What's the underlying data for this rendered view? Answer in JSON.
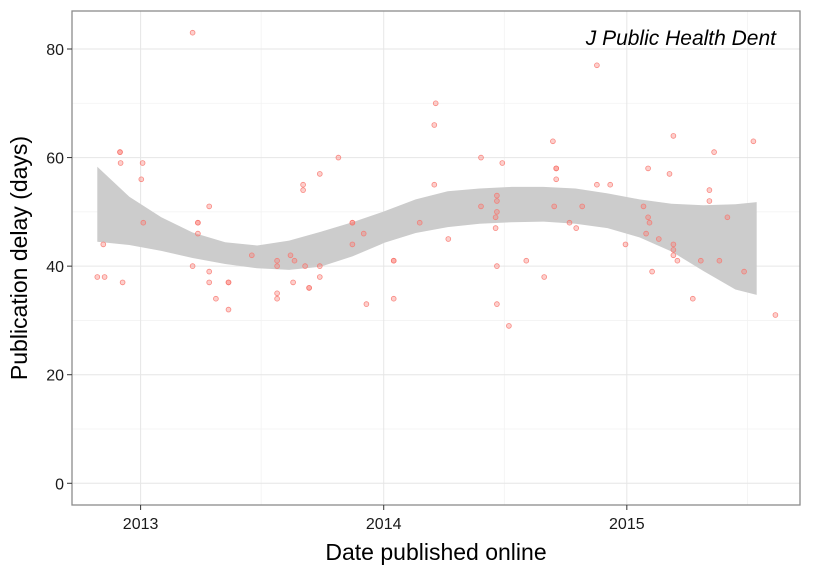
{
  "chart_data": {
    "type": "scatter",
    "annotation": "J Public Health Dent",
    "xlabel": "Date published online",
    "ylabel": "Publication delay (days)",
    "xlim": [
      "2012-09-20",
      "2015-09-18"
    ],
    "ylim": [
      -4,
      87
    ],
    "x_ticks": [
      {
        "date": "2013-01-01",
        "label": "2013"
      },
      {
        "date": "2014-01-01",
        "label": "2014"
      },
      {
        "date": "2015-01-01",
        "label": "2015"
      }
    ],
    "x_minor_ticks": [
      "2013-07-01",
      "2014-07-01",
      "2015-07-01"
    ],
    "y_ticks": [
      0,
      20,
      40,
      60,
      80
    ],
    "y_minor_ticks": [
      10,
      30,
      50,
      70
    ],
    "grid": true,
    "point_color": "#f8766d",
    "band_color": "#cccccc",
    "points": [
      {
        "x": "2012-10-28",
        "y": 38
      },
      {
        "x": "2012-11-06",
        "y": 44
      },
      {
        "x": "2012-11-08",
        "y": 38
      },
      {
        "x": "2012-12-01",
        "y": 61
      },
      {
        "x": "2012-12-01",
        "y": 61
      },
      {
        "x": "2012-12-02",
        "y": 59
      },
      {
        "x": "2012-12-05",
        "y": 37
      },
      {
        "x": "2013-01-04",
        "y": 59
      },
      {
        "x": "2013-01-02",
        "y": 56
      },
      {
        "x": "2013-01-05",
        "y": 48
      },
      {
        "x": "2013-03-20",
        "y": 83
      },
      {
        "x": "2013-03-20",
        "y": 40
      },
      {
        "x": "2013-03-28",
        "y": 48
      },
      {
        "x": "2013-03-28",
        "y": 48
      },
      {
        "x": "2013-03-28",
        "y": 46
      },
      {
        "x": "2013-04-14",
        "y": 51
      },
      {
        "x": "2013-04-14",
        "y": 39
      },
      {
        "x": "2013-04-14",
        "y": 37
      },
      {
        "x": "2013-04-24",
        "y": 34
      },
      {
        "x": "2013-05-13",
        "y": 37
      },
      {
        "x": "2013-05-13",
        "y": 37
      },
      {
        "x": "2013-05-13",
        "y": 32
      },
      {
        "x": "2013-06-17",
        "y": 42
      },
      {
        "x": "2013-07-25",
        "y": 41
      },
      {
        "x": "2013-07-25",
        "y": 40
      },
      {
        "x": "2013-07-25",
        "y": 35
      },
      {
        "x": "2013-07-25",
        "y": 34
      },
      {
        "x": "2013-08-14",
        "y": 42
      },
      {
        "x": "2013-08-18",
        "y": 37
      },
      {
        "x": "2013-08-20",
        "y": 41
      },
      {
        "x": "2013-09-02",
        "y": 55
      },
      {
        "x": "2013-09-02",
        "y": 54
      },
      {
        "x": "2013-09-05",
        "y": 40
      },
      {
        "x": "2013-09-11",
        "y": 36
      },
      {
        "x": "2013-09-11",
        "y": 36
      },
      {
        "x": "2013-09-27",
        "y": 40
      },
      {
        "x": "2013-09-27",
        "y": 38
      },
      {
        "x": "2013-09-27",
        "y": 57
      },
      {
        "x": "2013-10-25",
        "y": 60
      },
      {
        "x": "2013-11-15",
        "y": 48
      },
      {
        "x": "2013-11-15",
        "y": 48
      },
      {
        "x": "2013-11-15",
        "y": 44
      },
      {
        "x": "2013-12-02",
        "y": 46
      },
      {
        "x": "2013-12-06",
        "y": 33
      },
      {
        "x": "2014-01-16",
        "y": 41
      },
      {
        "x": "2014-01-16",
        "y": 41
      },
      {
        "x": "2014-01-16",
        "y": 34
      },
      {
        "x": "2014-02-24",
        "y": 48
      },
      {
        "x": "2014-03-20",
        "y": 70
      },
      {
        "x": "2014-03-18",
        "y": 66
      },
      {
        "x": "2014-03-18",
        "y": 55
      },
      {
        "x": "2014-04-08",
        "y": 45
      },
      {
        "x": "2014-05-27",
        "y": 60
      },
      {
        "x": "2014-05-27",
        "y": 51
      },
      {
        "x": "2014-06-18",
        "y": 49
      },
      {
        "x": "2014-06-18",
        "y": 47
      },
      {
        "x": "2014-06-20",
        "y": 50
      },
      {
        "x": "2014-06-20",
        "y": 52
      },
      {
        "x": "2014-06-20",
        "y": 53
      },
      {
        "x": "2014-06-20",
        "y": 40
      },
      {
        "x": "2014-06-20",
        "y": 33
      },
      {
        "x": "2014-06-28",
        "y": 59
      },
      {
        "x": "2014-07-08",
        "y": 29
      },
      {
        "x": "2014-08-03",
        "y": 41
      },
      {
        "x": "2014-08-30",
        "y": 38
      },
      {
        "x": "2014-09-12",
        "y": 63
      },
      {
        "x": "2014-09-14",
        "y": 51
      },
      {
        "x": "2014-09-17",
        "y": 58
      },
      {
        "x": "2014-09-17",
        "y": 58
      },
      {
        "x": "2014-09-17",
        "y": 56
      },
      {
        "x": "2014-10-07",
        "y": 48
      },
      {
        "x": "2014-10-17",
        "y": 47
      },
      {
        "x": "2014-10-26",
        "y": 51
      },
      {
        "x": "2014-11-17",
        "y": 77
      },
      {
        "x": "2014-11-17",
        "y": 55
      },
      {
        "x": "2014-12-07",
        "y": 55
      },
      {
        "x": "2014-12-30",
        "y": 44
      },
      {
        "x": "2015-01-26",
        "y": 51
      },
      {
        "x": "2015-01-30",
        "y": 46
      },
      {
        "x": "2015-02-02",
        "y": 58
      },
      {
        "x": "2015-02-02",
        "y": 49
      },
      {
        "x": "2015-02-04",
        "y": 48
      },
      {
        "x": "2015-02-08",
        "y": 39
      },
      {
        "x": "2015-02-18",
        "y": 45
      },
      {
        "x": "2015-03-06",
        "y": 57
      },
      {
        "x": "2015-03-12",
        "y": 64
      },
      {
        "x": "2015-03-12",
        "y": 44
      },
      {
        "x": "2015-03-12",
        "y": 43
      },
      {
        "x": "2015-03-12",
        "y": 42
      },
      {
        "x": "2015-03-18",
        "y": 41
      },
      {
        "x": "2015-04-10",
        "y": 34
      },
      {
        "x": "2015-04-22",
        "y": 41
      },
      {
        "x": "2015-05-05",
        "y": 54
      },
      {
        "x": "2015-05-05",
        "y": 52
      },
      {
        "x": "2015-05-12",
        "y": 61
      },
      {
        "x": "2015-05-20",
        "y": 41
      },
      {
        "x": "2015-06-01",
        "y": 49
      },
      {
        "x": "2015-06-26",
        "y": 39
      },
      {
        "x": "2015-07-10",
        "y": 63
      },
      {
        "x": "2015-08-12",
        "y": 31
      }
    ],
    "smooth_band": [
      {
        "x": "2012-10-28",
        "mid": 51.0,
        "lo": 44.5,
        "hi": 58.3
      },
      {
        "x": "2012-12-15",
        "mid": 48.3,
        "lo": 43.9,
        "hi": 52.8
      },
      {
        "x": "2013-02-01",
        "mid": 45.9,
        "lo": 42.8,
        "hi": 49.0
      },
      {
        "x": "2013-03-20",
        "mid": 43.8,
        "lo": 41.5,
        "hi": 46.2
      },
      {
        "x": "2013-05-08",
        "mid": 42.3,
        "lo": 40.4,
        "hi": 44.4
      },
      {
        "x": "2013-06-25",
        "mid": 41.7,
        "lo": 39.6,
        "hi": 43.8
      },
      {
        "x": "2013-08-12",
        "mid": 41.9,
        "lo": 39.3,
        "hi": 44.7
      },
      {
        "x": "2013-09-28",
        "mid": 43.0,
        "lo": 39.9,
        "hi": 46.3
      },
      {
        "x": "2013-11-15",
        "mid": 44.9,
        "lo": 41.8,
        "hi": 48.1
      },
      {
        "x": "2014-01-02",
        "mid": 47.2,
        "lo": 44.3,
        "hi": 50.1
      },
      {
        "x": "2014-02-18",
        "mid": 49.2,
        "lo": 46.1,
        "hi": 52.3
      },
      {
        "x": "2014-04-07",
        "mid": 50.5,
        "lo": 47.2,
        "hi": 53.8
      },
      {
        "x": "2014-05-25",
        "mid": 51.0,
        "lo": 47.8,
        "hi": 54.3
      },
      {
        "x": "2014-07-12",
        "mid": 51.2,
        "lo": 48.1,
        "hi": 54.6
      },
      {
        "x": "2014-08-29",
        "mid": 51.3,
        "lo": 48.2,
        "hi": 54.6
      },
      {
        "x": "2014-10-16",
        "mid": 51.0,
        "lo": 47.8,
        "hi": 54.3
      },
      {
        "x": "2014-12-03",
        "mid": 50.2,
        "lo": 47.0,
        "hi": 53.4
      },
      {
        "x": "2015-01-20",
        "mid": 48.7,
        "lo": 45.3,
        "hi": 52.3
      },
      {
        "x": "2015-03-09",
        "mid": 46.8,
        "lo": 42.7,
        "hi": 51.5
      },
      {
        "x": "2015-04-26",
        "mid": 44.8,
        "lo": 39.1,
        "hi": 51.2
      },
      {
        "x": "2015-06-13",
        "mid": 43.0,
        "lo": 35.7,
        "hi": 51.4
      },
      {
        "x": "2015-07-15",
        "mid": 42.3,
        "lo": 34.7,
        "hi": 51.8
      }
    ]
  }
}
